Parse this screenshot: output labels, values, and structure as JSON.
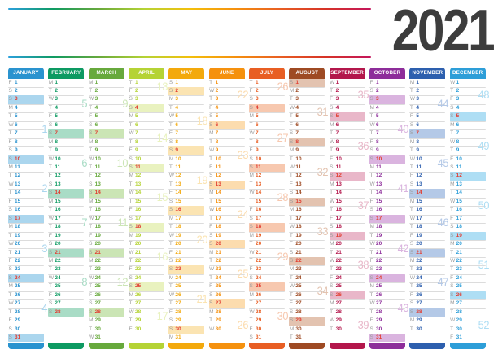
{
  "title": "2021",
  "decor": {
    "gradient_colors": [
      "#2ba0dd",
      "#0f9b62",
      "#68a93c",
      "#b5d335",
      "#f3c00c",
      "#f5910e",
      "#e85e23",
      "#d63327",
      "#c4155c"
    ],
    "year_color": "#3d3d3d",
    "day_letter_color": "#9c9c9c",
    "separator_color": "#dcdcdc",
    "sunday_number_color": "#e23c30",
    "header_text_color": "#ffffff",
    "background": "#ffffff"
  },
  "weekday_letters": [
    "M",
    "T",
    "W",
    "T",
    "F",
    "S",
    "S"
  ],
  "months": [
    {
      "name": "JANUARY",
      "color": "#2a93cf",
      "tint": "#abd6ee",
      "first_day": "Fri",
      "num_days": 31,
      "sundays": [
        3,
        10,
        17,
        24,
        31
      ],
      "weeks": [
        {
          "n": 1,
          "at": 6
        },
        {
          "n": 2,
          "at": 13
        },
        {
          "n": 3,
          "at": 20
        },
        {
          "n": 4,
          "at": 27
        }
      ]
    },
    {
      "name": "FEBRUARY",
      "color": "#0d9a62",
      "tint": "#a9dcc6",
      "first_day": "Mon",
      "num_days": 28,
      "sundays": [
        7,
        14,
        21,
        28
      ],
      "weeks": [
        {
          "n": 5,
          "at": 3
        },
        {
          "n": 6,
          "at": 10
        },
        {
          "n": 7,
          "at": 17
        },
        {
          "n": 8,
          "at": 24
        }
      ]
    },
    {
      "name": "MARCH",
      "color": "#67a93c",
      "tint": "#cbe5b5",
      "first_day": "Mon",
      "num_days": 31,
      "sundays": [
        7,
        14,
        21,
        28
      ],
      "weeks": [
        {
          "n": 9,
          "at": 3
        },
        {
          "n": 10,
          "at": 10
        },
        {
          "n": 11,
          "at": 17
        },
        {
          "n": 12,
          "at": 24
        }
      ]
    },
    {
      "name": "APRIL",
      "color": "#b5d335",
      "tint": "#e9f2bf",
      "first_day": "Thu",
      "num_days": 30,
      "sundays": [
        4,
        11,
        18,
        25
      ],
      "weeks": [
        {
          "n": 13,
          "at": 1
        },
        {
          "n": 14,
          "at": 7
        },
        {
          "n": 15,
          "at": 14
        },
        {
          "n": 16,
          "at": 21
        },
        {
          "n": 17,
          "at": 28
        }
      ]
    },
    {
      "name": "MAY",
      "color": "#f3a90c",
      "tint": "#fbe4b2",
      "first_day": "Sat",
      "num_days": 31,
      "sundays": [
        2,
        9,
        16,
        23,
        30
      ],
      "weeks": [
        {
          "n": 18,
          "at": 5
        },
        {
          "n": 19,
          "at": 12
        },
        {
          "n": 20,
          "at": 19
        },
        {
          "n": 21,
          "at": 26
        }
      ]
    },
    {
      "name": "JUNE",
      "color": "#f5910e",
      "tint": "#fcdcae",
      "first_day": "Tue",
      "num_days": 30,
      "sundays": [
        6,
        13,
        20,
        27
      ],
      "weeks": [
        {
          "n": 22,
          "at": 2
        },
        {
          "n": 23,
          "at": 9
        },
        {
          "n": 24,
          "at": 16
        },
        {
          "n": 25,
          "at": 23
        },
        {
          "n": 26,
          "at": 29
        }
      ]
    },
    {
      "name": "JULY",
      "color": "#e85e23",
      "tint": "#f7c8af",
      "first_day": "Thu",
      "num_days": 31,
      "sundays": [
        4,
        11,
        18,
        25
      ],
      "weeks": [
        {
          "n": 26,
          "at": 1
        },
        {
          "n": 27,
          "at": 7
        },
        {
          "n": 28,
          "at": 14
        },
        {
          "n": 29,
          "at": 21
        },
        {
          "n": 30,
          "at": 28
        }
      ]
    },
    {
      "name": "AUGUST",
      "color": "#9e4a23",
      "tint": "#e3c3b0",
      "first_day": "Sun",
      "num_days": 31,
      "sundays": [
        1,
        8,
        15,
        22,
        29
      ],
      "weeks": [
        {
          "n": 31,
          "at": 4
        },
        {
          "n": 32,
          "at": 11
        },
        {
          "n": 33,
          "at": 18
        },
        {
          "n": 34,
          "at": 25
        }
      ]
    },
    {
      "name": "SEPTEMBER",
      "color": "#b3164b",
      "tint": "#e9b7c9",
      "first_day": "Wed",
      "num_days": 30,
      "sundays": [
        5,
        12,
        19,
        26
      ],
      "weeks": [
        {
          "n": 35,
          "at": 2
        },
        {
          "n": 36,
          "at": 8
        },
        {
          "n": 37,
          "at": 15
        },
        {
          "n": 38,
          "at": 22
        },
        {
          "n": 39,
          "at": 29
        }
      ]
    },
    {
      "name": "OCTOBER",
      "color": "#8d2d9a",
      "tint": "#dab4df",
      "first_day": "Fri",
      "num_days": 31,
      "sundays": [
        3,
        10,
        17,
        24,
        31
      ],
      "weeks": [
        {
          "n": 40,
          "at": 6
        },
        {
          "n": 41,
          "at": 13
        },
        {
          "n": 42,
          "at": 20
        },
        {
          "n": 43,
          "at": 27
        }
      ]
    },
    {
      "name": "NOVEMBER",
      "color": "#2d5fae",
      "tint": "#b4c9e7",
      "first_day": "Mon",
      "num_days": 30,
      "sundays": [
        7,
        14,
        21,
        28
      ],
      "weeks": [
        {
          "n": 44,
          "at": 3
        },
        {
          "n": 45,
          "at": 10
        },
        {
          "n": 46,
          "at": 17
        },
        {
          "n": 47,
          "at": 24
        }
      ]
    },
    {
      "name": "DECEMBER",
      "color": "#2d9ed8",
      "tint": "#aedef4",
      "first_day": "Wed",
      "num_days": 31,
      "sundays": [
        5,
        12,
        19,
        26
      ],
      "weeks": [
        {
          "n": 48,
          "at": 2
        },
        {
          "n": 49,
          "at": 8
        },
        {
          "n": 50,
          "at": 15
        },
        {
          "n": 51,
          "at": 22
        },
        {
          "n": 52,
          "at": 29
        }
      ]
    }
  ]
}
